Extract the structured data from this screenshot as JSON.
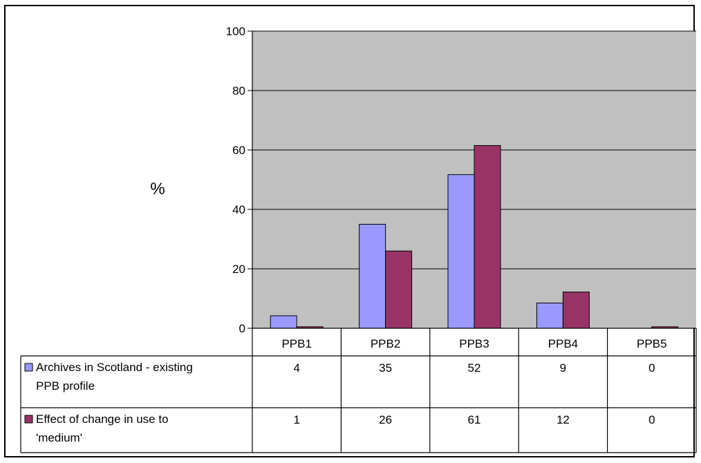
{
  "chart_data": {
    "type": "bar",
    "ylabel": "%",
    "ylim": [
      0,
      100
    ],
    "yticks": [
      0,
      20,
      40,
      60,
      80,
      100
    ],
    "grid": true,
    "categories": [
      "PPB1",
      "PPB2",
      "PPB3",
      "PPB4",
      "PPB5"
    ],
    "series": [
      {
        "name": "Archives in Scotland - existing PPB profile",
        "name_lines": [
          "Archives in Scotland - existing",
          "PPB profile"
        ],
        "values": [
          4,
          35,
          52,
          9,
          0
        ],
        "color": "#9999ff"
      },
      {
        "name": "Effect of change in use to 'medium'",
        "name_lines": [
          "Effect of change in use to",
          "'medium'"
        ],
        "values": [
          1,
          26,
          61,
          12,
          0
        ],
        "color": "#993366"
      }
    ],
    "bar_values": [
      [
        4.2,
        35,
        51.7,
        8.5,
        0
      ],
      [
        0.5,
        26,
        61.5,
        12.2,
        0.5
      ]
    ],
    "plot_background": "#c0c0c0",
    "legend": "data-table"
  }
}
